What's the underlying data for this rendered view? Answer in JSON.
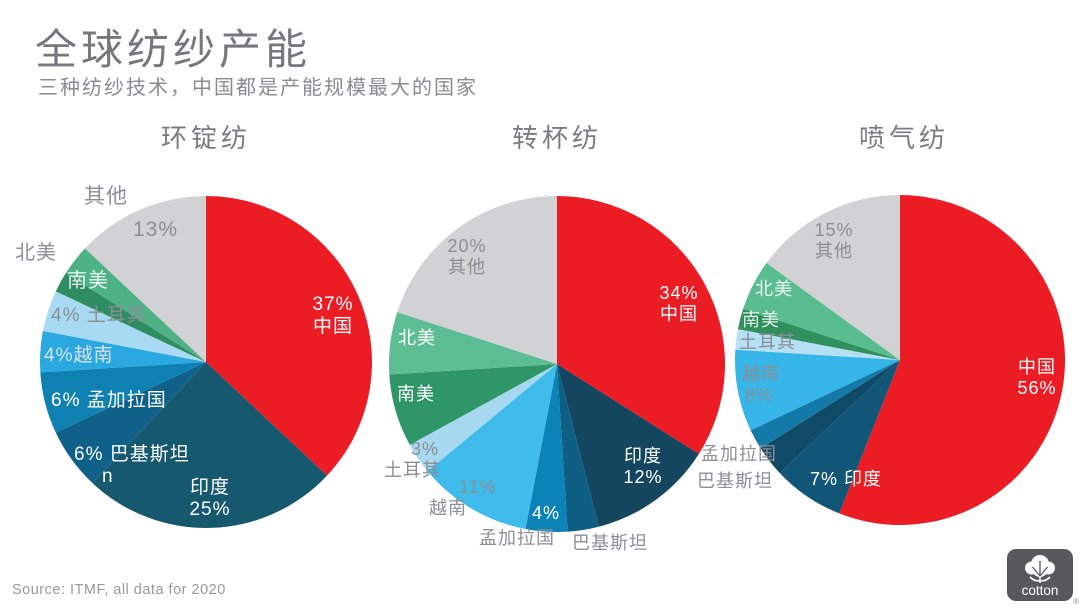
{
  "header": {
    "title": "全球纺纱产能",
    "subtitle": "三种纺纱技术，中国都是产能规模最大的国家"
  },
  "source_label": "Source: ITMF, all data for 2020",
  "logo": {
    "brand": "cotton",
    "registered_mark": "®"
  },
  "colors": {
    "china_red": "#EC1C24",
    "others_gray": "#D2D2D4",
    "title_gray": "#77787B",
    "label_gray": "#8B9094",
    "logo_background": "#57585A"
  },
  "chart_data": [
    {
      "type": "pie",
      "title": "环锭纺",
      "unit": "%",
      "start_angle_deg": 0,
      "direction": "clockwise",
      "slices": [
        {
          "key": "china",
          "label": "中国",
          "value": 37,
          "color": "#EC1C24",
          "labels": [
            {
              "lines": [
                "37%",
                "中国"
              ],
              "style": "white"
            }
          ]
        },
        {
          "key": "india",
          "label": "印度",
          "value": 25,
          "color": "#16596F",
          "labels": [
            {
              "lines": [
                "印度",
                "25%"
              ],
              "style": "white"
            }
          ]
        },
        {
          "key": "pakistan",
          "label": "巴基斯坦",
          "value": 6,
          "color": "#10618A",
          "labels": [
            {
              "lines": [
                "6% 巴基斯坦",
                "n"
              ],
              "style": "white"
            }
          ]
        },
        {
          "key": "bangladesh",
          "label": "孟加拉国",
          "value": 6,
          "color": "#0E80B2",
          "labels": [
            {
              "lines": [
                "6% 孟加拉国"
              ],
              "style": "white"
            }
          ]
        },
        {
          "key": "vietnam",
          "label": "越南",
          "value": 4,
          "color": "#29A9E0",
          "labels": [
            {
              "lines": [
                "4%越南"
              ],
              "style": "dim"
            }
          ]
        },
        {
          "key": "turkey",
          "label": "土耳其",
          "value": 4,
          "color": "#A9DAF3",
          "labels": [
            {
              "lines": [
                "4% 土耳其"
              ],
              "style": "gray"
            }
          ]
        },
        {
          "key": "south-america",
          "label": "南美",
          "value": 2,
          "color": "#2E8E61",
          "labels": [
            {
              "lines": [
                "南美"
              ],
              "style": "soft"
            }
          ]
        },
        {
          "key": "north-america",
          "label": "北美",
          "value": 3,
          "color": "#4FB287",
          "labels": [
            {
              "lines": [
                "北美"
              ],
              "style": "gray"
            }
          ]
        },
        {
          "key": "others",
          "label": "其他",
          "value": 13,
          "color": "#D2D2D4",
          "labels": [
            {
              "lines": [
                "其他"
              ],
              "style": "gray"
            },
            {
              "lines": [
                "13%"
              ],
              "style": "gray"
            }
          ]
        }
      ]
    },
    {
      "type": "pie",
      "title": "转杯纺",
      "unit": "%",
      "start_angle_deg": 0,
      "direction": "clockwise",
      "slices": [
        {
          "key": "china",
          "label": "中国",
          "value": 34,
          "color": "#EC1C24",
          "labels": [
            {
              "lines": [
                "34%",
                "中国"
              ],
              "style": "white"
            }
          ]
        },
        {
          "key": "india",
          "label": "印度",
          "value": 12,
          "color": "#14475F",
          "labels": [
            {
              "lines": [
                "印度",
                "12%"
              ],
              "style": "white"
            }
          ]
        },
        {
          "key": "pakistan",
          "label": "巴基斯坦",
          "value": 3,
          "color": "#0E5F83",
          "labels": [
            {
              "lines": [
                "巴基斯坦"
              ],
              "style": "gray"
            }
          ]
        },
        {
          "key": "bangladesh",
          "label": "孟加拉国",
          "value": 4,
          "color": "#0C83B6",
          "labels": [
            {
              "lines": [
                "4%"
              ],
              "style": "white"
            },
            {
              "lines": [
                "孟加拉国"
              ],
              "style": "gray"
            }
          ]
        },
        {
          "key": "vietnam",
          "label": "越南",
          "value": 11,
          "color": "#3FBCEB",
          "labels": [
            {
              "lines": [
                "11%",
                "越南"
              ],
              "style": "gray"
            }
          ]
        },
        {
          "key": "turkey",
          "label": "土耳其",
          "value": 3,
          "color": "#A6D8F1",
          "labels": [
            {
              "lines": [
                "3%",
                "土耳其"
              ],
              "style": "gray"
            }
          ]
        },
        {
          "key": "south-america",
          "label": "南美",
          "value": 7,
          "color": "#2F9668",
          "labels": [
            {
              "lines": [
                "南美"
              ],
              "style": "white"
            }
          ]
        },
        {
          "key": "north-america",
          "label": "北美",
          "value": 6,
          "color": "#5DBE94",
          "labels": [
            {
              "lines": [
                "北美"
              ],
              "style": "white"
            }
          ]
        },
        {
          "key": "others",
          "label": "其他",
          "value": 20,
          "color": "#D2D2D4",
          "labels": [
            {
              "lines": [
                "20%",
                "其他"
              ],
              "style": "gray"
            }
          ]
        }
      ]
    },
    {
      "type": "pie",
      "title": "喷气纺",
      "unit": "%",
      "start_angle_deg": 0,
      "direction": "clockwise",
      "slices": [
        {
          "key": "china",
          "label": "中国",
          "value": 56,
          "color": "#EC1C24",
          "labels": [
            {
              "lines": [
                "中国",
                "56%"
              ],
              "style": "white"
            }
          ]
        },
        {
          "key": "india",
          "label": "印度",
          "value": 7,
          "color": "#115677",
          "labels": [
            {
              "lines": [
                "7% 印度"
              ],
              "style": "white"
            }
          ]
        },
        {
          "key": "pakistan",
          "label": "巴基斯坦",
          "value": 3,
          "color": "#0F4A66",
          "labels": [
            {
              "lines": [
                "巴基斯坦"
              ],
              "style": "gray"
            }
          ]
        },
        {
          "key": "bangladesh",
          "label": "孟加拉国",
          "value": 2,
          "color": "#1379A9",
          "labels": [
            {
              "lines": [
                "孟加拉国"
              ],
              "style": "gray"
            }
          ]
        },
        {
          "key": "vietnam",
          "label": "越南",
          "value": 8,
          "color": "#35B5E8",
          "labels": [
            {
              "lines": [
                "越南",
                "8%"
              ],
              "style": "gray"
            }
          ]
        },
        {
          "key": "turkey",
          "label": "土耳其",
          "value": 2,
          "color": "#B5E0F5",
          "labels": [
            {
              "lines": [
                "土耳其"
              ],
              "style": "gray"
            }
          ]
        },
        {
          "key": "south-america",
          "label": "南美",
          "value": 2,
          "color": "#30915F",
          "labels": [
            {
              "lines": [
                "南美"
              ],
              "style": "soft"
            }
          ]
        },
        {
          "key": "north-america",
          "label": "北美",
          "value": 5,
          "color": "#59BD90",
          "labels": [
            {
              "lines": [
                "北美"
              ],
              "style": "soft"
            }
          ]
        },
        {
          "key": "others",
          "label": "其他",
          "value": 15,
          "color": "#D2D2D4",
          "labels": [
            {
              "lines": [
                "15%",
                "其他"
              ],
              "style": "gray"
            }
          ]
        }
      ]
    }
  ]
}
